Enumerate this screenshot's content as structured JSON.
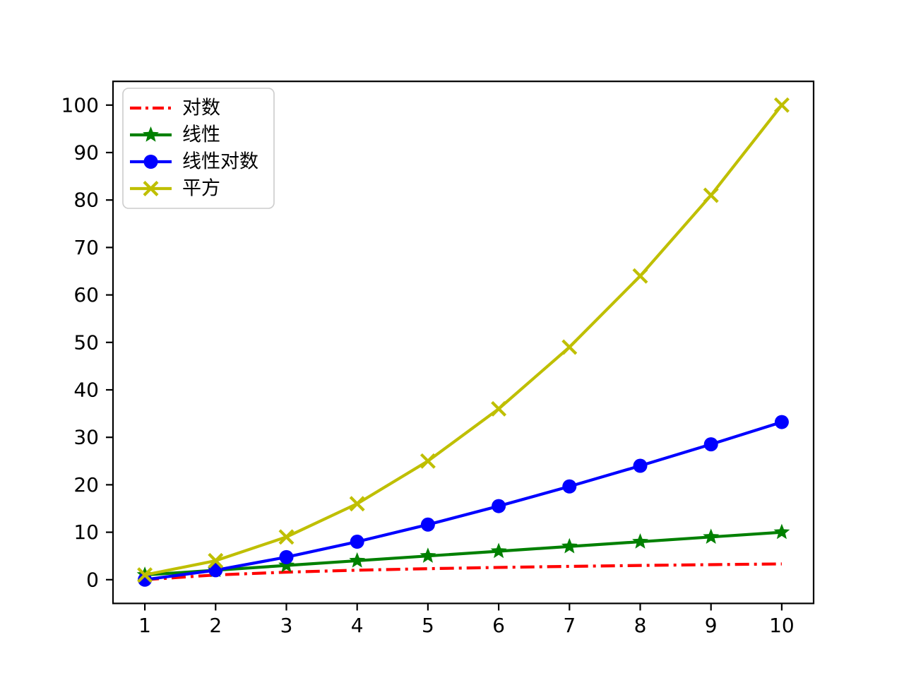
{
  "figure": {
    "background": "#ffffff",
    "title": "",
    "xlabel": "",
    "ylabel": ""
  },
  "chart_data": {
    "type": "line",
    "title": "",
    "xlabel": "",
    "ylabel": "",
    "x": [
      1,
      2,
      3,
      4,
      5,
      6,
      7,
      8,
      9,
      10
    ],
    "xticks": [
      "1",
      "2",
      "3",
      "4",
      "5",
      "6",
      "7",
      "8",
      "9",
      "10"
    ],
    "yticks": [
      "0",
      "10",
      "20",
      "30",
      "40",
      "50",
      "60",
      "70",
      "80",
      "90",
      "100"
    ],
    "ytick_values": [
      0,
      10,
      20,
      30,
      40,
      50,
      60,
      70,
      80,
      90,
      100
    ],
    "xlim": [
      0.55,
      10.45
    ],
    "ylim": [
      -5,
      105
    ],
    "grid": false,
    "axis_color": "#000000",
    "series": [
      {
        "name": "对数",
        "color": "#ff0000",
        "linestyle": "dashdot",
        "marker": "none",
        "values": [
          0,
          1,
          1.585,
          2,
          2.322,
          2.585,
          2.807,
          3,
          3.17,
          3.322
        ]
      },
      {
        "name": "线性",
        "color": "#008000",
        "linestyle": "solid",
        "marker": "star",
        "values": [
          1,
          2,
          3,
          4,
          5,
          6,
          7,
          8,
          9,
          10
        ]
      },
      {
        "name": "线性对数",
        "color": "#0000ff",
        "linestyle": "solid",
        "marker": "circle",
        "values": [
          0,
          2,
          4.755,
          8,
          11.61,
          15.51,
          19.651,
          24,
          28.529,
          33.219
        ]
      },
      {
        "name": "平方",
        "color": "#bfbf00",
        "linestyle": "solid",
        "marker": "x",
        "values": [
          1,
          4,
          9,
          16,
          25,
          36,
          49,
          64,
          81,
          100
        ]
      }
    ],
    "legend": {
      "position": "upper-left",
      "frame_color": "#cccccc",
      "frame_fill": "#ffffff",
      "entries": [
        "对数",
        "线性",
        "线性对数",
        "平方"
      ]
    }
  }
}
